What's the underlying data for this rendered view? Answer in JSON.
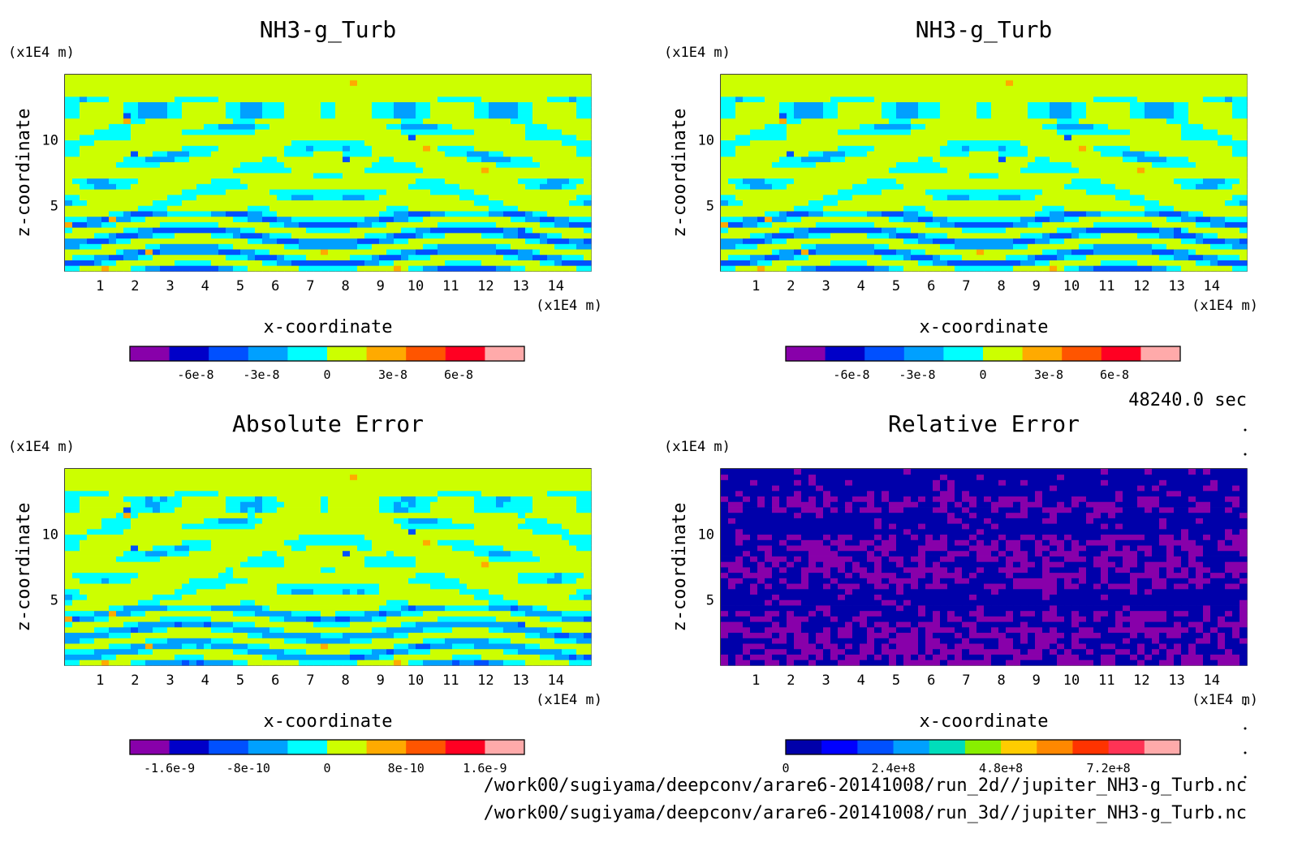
{
  "time_label": "48240.0 sec",
  "footer": {
    "line1": "/work00/sugiyama/deepconv/arare6-20141008/run_2d//jupiter_NH3-g_Turb.nc",
    "line2": "/work00/sugiyama/deepconv/arare6-20141008/run_3d//jupiter_NH3-g_Turb.nc"
  },
  "chart_data": [
    {
      "type": "heatmap",
      "title": "NH3-g_Turb",
      "xlabel": "x-coordinate",
      "ylabel": "z-coordinate",
      "x_unit": "(x1E4 m)",
      "y_unit": "(x1E4 m)",
      "xlim": [
        0,
        15
      ],
      "ylim": [
        0,
        15
      ],
      "x_ticks": [
        "1",
        "2",
        "3",
        "4",
        "5",
        "6",
        "7",
        "8",
        "9",
        "10",
        "11",
        "12",
        "13",
        "14"
      ],
      "y_ticks": [
        "5",
        "10"
      ],
      "field": "turbulent NH3 tendency, symmetric bands about x=7.5",
      "colorbar": {
        "colors": [
          "#8800aa",
          "#0000c8",
          "#0050ff",
          "#00a0ff",
          "#00ffff",
          "#ccff00",
          "#ffaa00",
          "#ff5500",
          "#ff0022",
          "#ffaaaa"
        ],
        "tick_labels": [
          "-6e-8",
          "-3e-8",
          "0",
          "3e-8",
          "6e-8"
        ],
        "tick_values": [
          -6e-08,
          -3e-08,
          0,
          3e-08,
          6e-08
        ],
        "vmin": -9e-08,
        "vmax": 9e-08
      }
    },
    {
      "type": "heatmap",
      "title": "NH3-g_Turb",
      "xlabel": "x-coordinate",
      "ylabel": "z-coordinate",
      "x_unit": "(x1E4 m)",
      "y_unit": "(x1E4 m)",
      "xlim": [
        0,
        15
      ],
      "ylim": [
        0,
        15
      ],
      "x_ticks": [
        "1",
        "2",
        "3",
        "4",
        "5",
        "6",
        "7",
        "8",
        "9",
        "10",
        "11",
        "12",
        "13",
        "14"
      ],
      "y_ticks": [
        "5",
        "10"
      ],
      "field": "turbulent NH3 tendency, symmetric bands about x=7.5",
      "colorbar": {
        "colors": [
          "#8800aa",
          "#0000c8",
          "#0050ff",
          "#00a0ff",
          "#00ffff",
          "#ccff00",
          "#ffaa00",
          "#ff5500",
          "#ff0022",
          "#ffaaaa"
        ],
        "tick_labels": [
          "-6e-8",
          "-3e-8",
          "0",
          "3e-8",
          "6e-8"
        ],
        "tick_values": [
          -6e-08,
          -3e-08,
          0,
          3e-08,
          6e-08
        ],
        "vmin": -9e-08,
        "vmax": 9e-08
      }
    },
    {
      "type": "heatmap",
      "title": "Absolute Error",
      "xlabel": "x-coordinate",
      "ylabel": "z-coordinate",
      "x_unit": "(x1E4 m)",
      "y_unit": "(x1E4 m)",
      "xlim": [
        0,
        15
      ],
      "ylim": [
        0,
        15
      ],
      "x_ticks": [
        "1",
        "2",
        "3",
        "4",
        "5",
        "6",
        "7",
        "8",
        "9",
        "10",
        "11",
        "12",
        "13",
        "14"
      ],
      "y_ticks": [
        "5",
        "10"
      ],
      "field": "absolute difference, mostly near zero",
      "colorbar": {
        "colors": [
          "#8800aa",
          "#0000c8",
          "#0050ff",
          "#00a0ff",
          "#00ffff",
          "#ccff00",
          "#ffaa00",
          "#ff5500",
          "#ff0022",
          "#ffaaaa"
        ],
        "tick_labels": [
          "-1.6e-9",
          "-8e-10",
          "0",
          "8e-10",
          "1.6e-9"
        ],
        "tick_values": [
          -1.6e-09,
          -8e-10,
          0,
          8e-10,
          1.6e-09
        ],
        "vmin": -2e-09,
        "vmax": 2e-09
      }
    },
    {
      "type": "heatmap",
      "title": "Relative Error",
      "xlabel": "x-coordinate",
      "ylabel": "z-coordinate",
      "x_unit": "(x1E4 m)",
      "y_unit": "(x1E4 m)",
      "xlim": [
        0,
        15
      ],
      "ylim": [
        0,
        15
      ],
      "x_ticks": [
        "1",
        "2",
        "3",
        "4",
        "5",
        "6",
        "7",
        "8",
        "9",
        "10",
        "11",
        "12",
        "13",
        "14"
      ],
      "y_ticks": [
        "5",
        "10"
      ],
      "field": "relative difference, mostly lowest bin with purple speckle",
      "colorbar": {
        "colors": [
          "#0000aa",
          "#0000ff",
          "#0050ff",
          "#00a0ff",
          "#00ddbb",
          "#88ee00",
          "#ffcc00",
          "#ff8800",
          "#ff3300",
          "#ff3355",
          "#ffaaaa"
        ],
        "tick_labels": [
          "0",
          "2.4e+8",
          "4.8e+8",
          "7.2e+8"
        ],
        "tick_values": [
          0,
          240000000.0,
          480000000.0,
          720000000.0
        ],
        "vmin": 0,
        "vmax": 880000000.0
      }
    }
  ]
}
